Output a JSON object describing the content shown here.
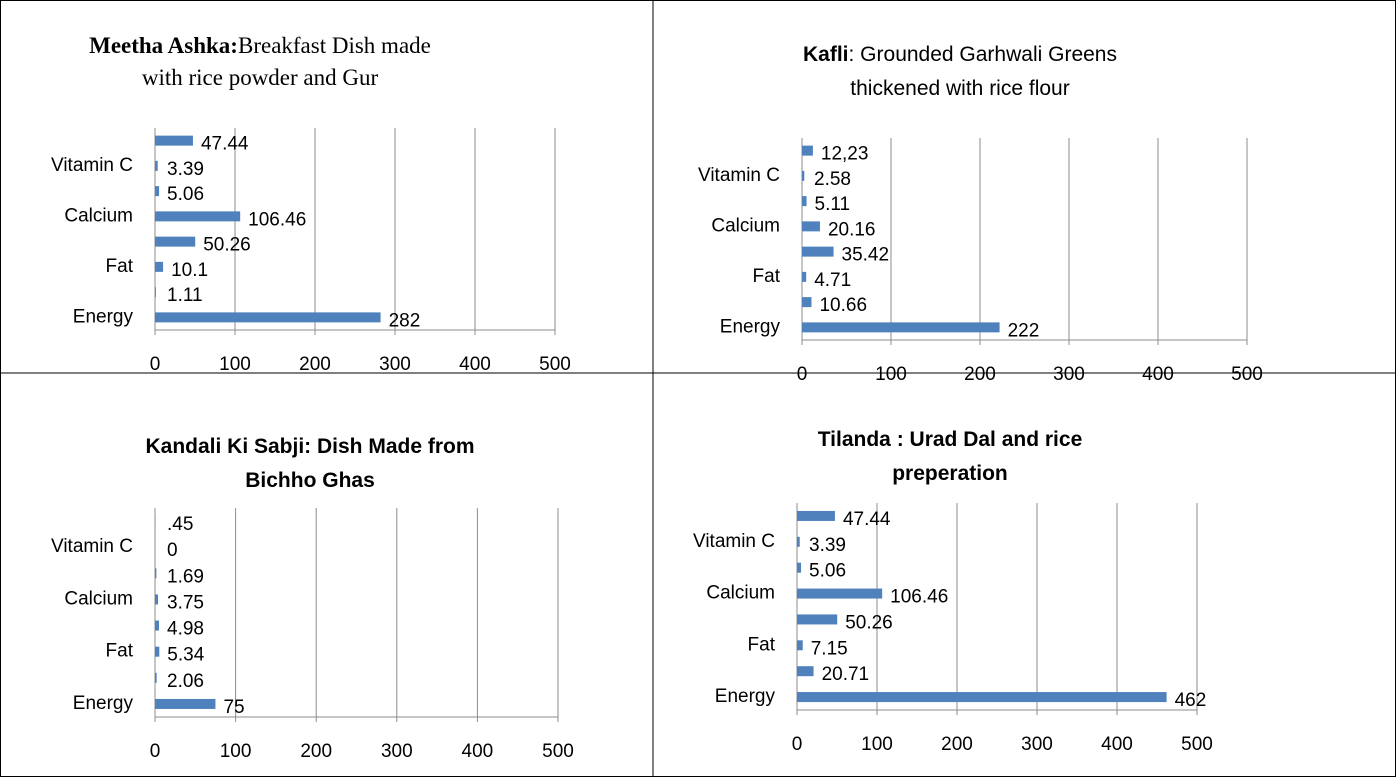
{
  "chart_data": [
    {
      "type": "bar",
      "orientation": "horizontal",
      "title_bold": "Meetha Ashka:",
      "title": [
        "Breakfast Dish made",
        "with rice powder and Gur"
      ],
      "categories": [
        "Energy",
        null,
        "Fat",
        null,
        "Calcium",
        null,
        "Vitamin C",
        null
      ],
      "values": [
        282,
        1.11,
        10.1,
        50.26,
        106.46,
        5.06,
        3.39,
        47.44
      ],
      "color": "#4f81bd",
      "xlim": [
        0,
        500
      ],
      "xticks": [
        0,
        100,
        200,
        300,
        400,
        500
      ],
      "grid": true
    },
    {
      "type": "bar",
      "orientation": "horizontal",
      "title_bold": "Kafli",
      "title": [
        ": Grounded Garhwali Greens",
        "thickened with rice flour"
      ],
      "categories": [
        "Energy",
        null,
        "Fat",
        null,
        "Calcium",
        null,
        "Vitamin C",
        null
      ],
      "values": [
        222,
        10.66,
        4.71,
        35.42,
        20.16,
        5.11,
        2.58,
        12.23
      ],
      "value_labels": [
        "222",
        "10.66",
        "4.71",
        "35.42",
        "20.16",
        "5.11",
        "2.58",
        "12,23"
      ],
      "color": "#4f81bd",
      "xlim": [
        0,
        500
      ],
      "xticks": [
        0,
        100,
        200,
        300,
        400,
        500
      ],
      "grid": true
    },
    {
      "type": "bar",
      "orientation": "horizontal",
      "title_bold": [
        "Kandali Ki Sabji: Dish Made from",
        "Bichho Ghas"
      ],
      "categories": [
        "Energy",
        null,
        "Fat",
        null,
        "Calcium",
        null,
        "Vitamin C",
        null
      ],
      "values": [
        75,
        2.06,
        5.34,
        4.98,
        3.75,
        1.69,
        0,
        0.45
      ],
      "value_labels": [
        "75",
        "2.06",
        "5.34",
        "4.98",
        "3.75",
        "1.69",
        "0",
        ".45"
      ],
      "color": "#4f81bd",
      "xlim": [
        0,
        500
      ],
      "xticks": [
        0,
        100,
        200,
        300,
        400,
        500
      ],
      "grid": true
    },
    {
      "type": "bar",
      "orientation": "horizontal",
      "title_bold": [
        "Tilanda : Urad Dal and rice",
        "preperation"
      ],
      "categories": [
        "Energy",
        null,
        "Fat",
        null,
        "Calcium",
        null,
        "Vitamin C",
        null
      ],
      "values": [
        462,
        20.71,
        7.15,
        50.26,
        106.46,
        5.06,
        3.39,
        47.44
      ],
      "color": "#4f81bd",
      "xlim": [
        0,
        500
      ],
      "xticks": [
        0,
        100,
        200,
        300,
        400,
        500
      ],
      "grid": true
    }
  ]
}
